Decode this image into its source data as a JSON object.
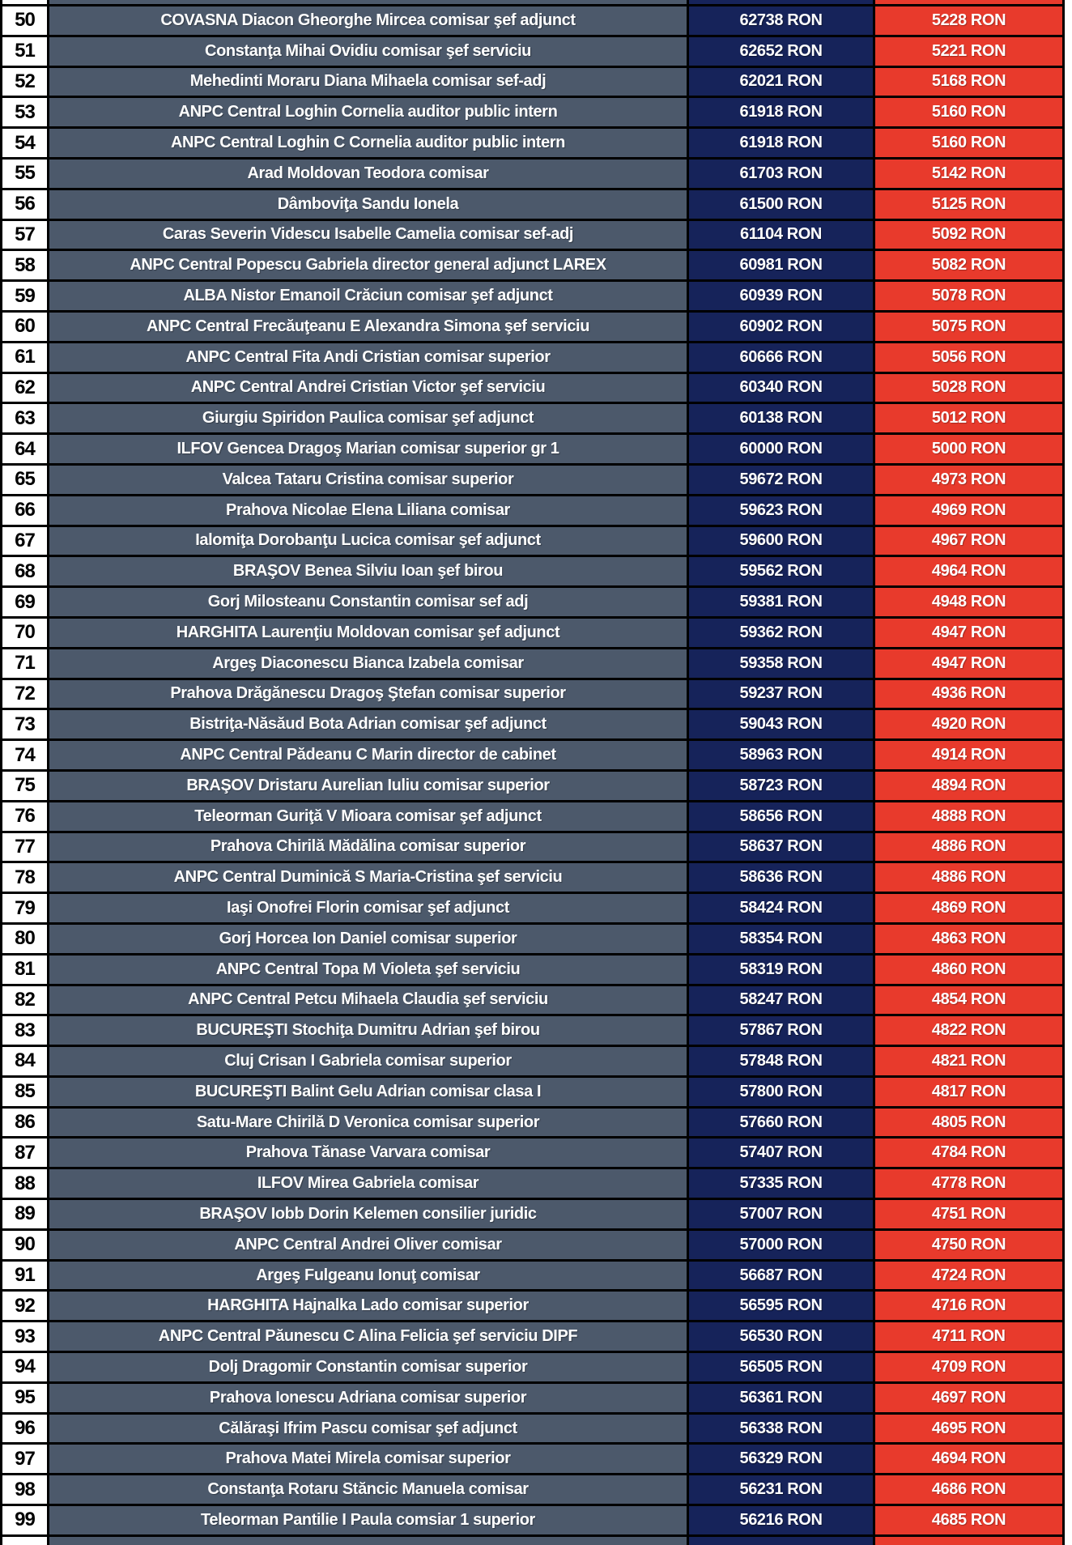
{
  "table": {
    "currency_unit": "RON",
    "rows": [
      {
        "num": "50",
        "name": "COVASNA Diacon Gheorghe Mircea comisar şef adjunct",
        "amount_navy": "62738 RON",
        "amount_red": "5228 RON"
      },
      {
        "num": "51",
        "name": "Constanţa Mihai Ovidiu comisar şef serviciu",
        "amount_navy": "62652 RON",
        "amount_red": "5221 RON"
      },
      {
        "num": "52",
        "name": "Mehedinti Moraru Diana Mihaela comisar sef-adj",
        "amount_navy": "62021 RON",
        "amount_red": "5168 RON"
      },
      {
        "num": "53",
        "name": "ANPC Central Loghin Cornelia auditor public intern",
        "amount_navy": "61918 RON",
        "amount_red": "5160 RON"
      },
      {
        "num": "54",
        "name": "ANPC Central Loghin C Cornelia auditor public intern",
        "amount_navy": "61918 RON",
        "amount_red": "5160 RON"
      },
      {
        "num": "55",
        "name": "Arad Moldovan Teodora comisar",
        "amount_navy": "61703 RON",
        "amount_red": "5142 RON"
      },
      {
        "num": "56",
        "name": "Dâmboviţa Sandu Ionela",
        "amount_navy": "61500 RON",
        "amount_red": "5125 RON"
      },
      {
        "num": "57",
        "name": "Caras Severin Videscu Isabelle Camelia comisar sef-adj",
        "amount_navy": "61104 RON",
        "amount_red": "5092 RON"
      },
      {
        "num": "58",
        "name": "ANPC Central Popescu Gabriela director general adjunct LAREX",
        "amount_navy": "60981 RON",
        "amount_red": "5082 RON"
      },
      {
        "num": "59",
        "name": "ALBA Nistor Emanoil Crăciun comisar şef adjunct",
        "amount_navy": "60939 RON",
        "amount_red": "5078 RON"
      },
      {
        "num": "60",
        "name": "ANPC Central Frecăuţeanu E Alexandra Simona şef serviciu",
        "amount_navy": "60902 RON",
        "amount_red": "5075 RON"
      },
      {
        "num": "61",
        "name": "ANPC Central Fita Andi Cristian comisar superior",
        "amount_navy": "60666 RON",
        "amount_red": "5056 RON"
      },
      {
        "num": "62",
        "name": "ANPC Central Andrei Cristian Victor şef serviciu",
        "amount_navy": "60340 RON",
        "amount_red": "5028 RON"
      },
      {
        "num": "63",
        "name": "Giurgiu Spiridon Paulica comisar şef adjunct",
        "amount_navy": "60138 RON",
        "amount_red": "5012 RON"
      },
      {
        "num": "64",
        "name": "ILFOV Gencea Dragoş Marian comisar superior gr 1",
        "amount_navy": "60000 RON",
        "amount_red": "5000 RON"
      },
      {
        "num": "65",
        "name": "Valcea Tataru Cristina comisar superior",
        "amount_navy": "59672 RON",
        "amount_red": "4973 RON"
      },
      {
        "num": "66",
        "name": "Prahova Nicolae Elena Liliana comisar",
        "amount_navy": "59623 RON",
        "amount_red": "4969 RON"
      },
      {
        "num": "67",
        "name": "Ialomiţa Dorobanţu Lucica comisar şef adjunct",
        "amount_navy": "59600 RON",
        "amount_red": "4967 RON"
      },
      {
        "num": "68",
        "name": "BRAŞOV Benea Silviu Ioan şef birou",
        "amount_navy": "59562 RON",
        "amount_red": "4964 RON"
      },
      {
        "num": "69",
        "name": "Gorj Milosteanu Constantin comisar sef adj",
        "amount_navy": "59381 RON",
        "amount_red": "4948 RON"
      },
      {
        "num": "70",
        "name": "HARGHITA Laurenţiu Moldovan comisar şef adjunct",
        "amount_navy": "59362 RON",
        "amount_red": "4947 RON"
      },
      {
        "num": "71",
        "name": "Argeş Diaconescu Bianca Izabela comisar",
        "amount_navy": "59358 RON",
        "amount_red": "4947 RON"
      },
      {
        "num": "72",
        "name": "Prahova Drăgănescu Dragoş Ştefan comisar superior",
        "amount_navy": "59237 RON",
        "amount_red": "4936 RON"
      },
      {
        "num": "73",
        "name": "Bistriţa-Năsăud Bota Adrian comisar şef adjunct",
        "amount_navy": "59043 RON",
        "amount_red": "4920 RON"
      },
      {
        "num": "74",
        "name": "ANPC Central Pădeanu C Marin director de cabinet",
        "amount_navy": "58963 RON",
        "amount_red": "4914 RON"
      },
      {
        "num": "75",
        "name": "BRAŞOV Dristaru Aurelian Iuliu comisar superior",
        "amount_navy": "58723 RON",
        "amount_red": "4894 RON"
      },
      {
        "num": "76",
        "name": "Teleorman Guriţă V Mioara comisar şef adjunct",
        "amount_navy": "58656 RON",
        "amount_red": "4888 RON"
      },
      {
        "num": "77",
        "name": "Prahova Chirilă Mădălina comisar superior",
        "amount_navy": "58637 RON",
        "amount_red": "4886 RON"
      },
      {
        "num": "78",
        "name": "ANPC Central Duminică S Maria-Cristina şef serviciu",
        "amount_navy": "58636 RON",
        "amount_red": "4886 RON"
      },
      {
        "num": "79",
        "name": "Iaşi Onofrei Florin comisar şef adjunct",
        "amount_navy": "58424 RON",
        "amount_red": "4869 RON"
      },
      {
        "num": "80",
        "name": "Gorj Horcea Ion Daniel comisar superior",
        "amount_navy": "58354 RON",
        "amount_red": "4863 RON"
      },
      {
        "num": "81",
        "name": "ANPC Central Topa M Violeta şef serviciu",
        "amount_navy": "58319 RON",
        "amount_red": "4860 RON"
      },
      {
        "num": "82",
        "name": "ANPC Central Petcu Mihaela Claudia şef serviciu",
        "amount_navy": "58247 RON",
        "amount_red": "4854 RON"
      },
      {
        "num": "83",
        "name": "BUCUREŞTI Stochiţa Dumitru Adrian şef birou",
        "amount_navy": "57867 RON",
        "amount_red": "4822 RON"
      },
      {
        "num": "84",
        "name": "Cluj Crisan I Gabriela comisar superior",
        "amount_navy": "57848 RON",
        "amount_red": "4821 RON"
      },
      {
        "num": "85",
        "name": "BUCUREŞTI Balint Gelu Adrian comisar clasa I",
        "amount_navy": "57800 RON",
        "amount_red": "4817 RON"
      },
      {
        "num": "86",
        "name": "Satu-Mare Chirilă D Veronica comisar superior",
        "amount_navy": "57660 RON",
        "amount_red": "4805 RON"
      },
      {
        "num": "87",
        "name": "Prahova Tănase Varvara comisar",
        "amount_navy": "57407 RON",
        "amount_red": "4784 RON"
      },
      {
        "num": "88",
        "name": "ILFOV Mirea Gabriela comisar",
        "amount_navy": "57335 RON",
        "amount_red": "4778 RON"
      },
      {
        "num": "89",
        "name": "BRAŞOV Iobb Dorin Kelemen consilier juridic",
        "amount_navy": "57007 RON",
        "amount_red": "4751 RON"
      },
      {
        "num": "90",
        "name": "ANPC Central Andrei Oliver comisar",
        "amount_navy": "57000 RON",
        "amount_red": "4750 RON"
      },
      {
        "num": "91",
        "name": "Argeş Fulgeanu Ionuţ comisar",
        "amount_navy": "56687 RON",
        "amount_red": "4724 RON"
      },
      {
        "num": "92",
        "name": "HARGHITA Hajnalka Lado comisar superior",
        "amount_navy": "56595 RON",
        "amount_red": "4716 RON"
      },
      {
        "num": "93",
        "name": "ANPC Central Păunescu C Alina Felicia şef serviciu DIPF",
        "amount_navy": "56530 RON",
        "amount_red": "4711 RON"
      },
      {
        "num": "94",
        "name": "Dolj Dragomir Constantin comisar superior",
        "amount_navy": "56505 RON",
        "amount_red": "4709 RON"
      },
      {
        "num": "95",
        "name": "Prahova Ionescu Adriana comisar superior",
        "amount_navy": "56361 RON",
        "amount_red": "4697 RON"
      },
      {
        "num": "96",
        "name": "Călăraşi Ifrim Pascu comisar şef adjunct",
        "amount_navy": "56338 RON",
        "amount_red": "4695 RON"
      },
      {
        "num": "97",
        "name": "Prahova Matei Mirela comisar superior",
        "amount_navy": "56329 RON",
        "amount_red": "4694 RON"
      },
      {
        "num": "98",
        "name": "Constanţa Rotaru Stăncic Manuela comisar",
        "amount_navy": "56231 RON",
        "amount_red": "4686 RON"
      },
      {
        "num": "99",
        "name": "Teleorman Pantilie I Paula comsiar 1 superior",
        "amount_navy": "56216 RON",
        "amount_red": "4685 RON"
      }
    ]
  },
  "colors": {
    "name_column_bg": "#4c596b",
    "navy_column_bg": "#16235a",
    "red_column_bg": "#e83a2c",
    "number_column_bg": "#ffffff",
    "grid_border": "#000000"
  }
}
